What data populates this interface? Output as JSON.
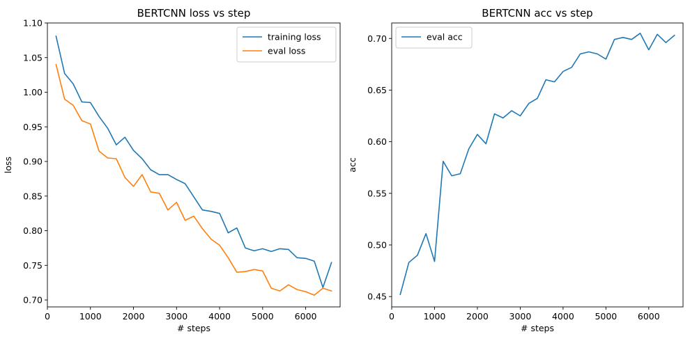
{
  "chart_data": [
    {
      "type": "line",
      "title": "BERTCNN loss vs step",
      "xlabel": "# steps",
      "ylabel": "loss",
      "xlim": [
        0,
        6800
      ],
      "ylim": [
        0.69,
        1.1
      ],
      "xticks": [
        "0",
        "1000",
        "2000",
        "3000",
        "4000",
        "5000",
        "6000"
      ],
      "xtick_values": [
        0,
        1000,
        2000,
        3000,
        4000,
        5000,
        6000
      ],
      "yticks": [
        "0.70",
        "0.75",
        "0.80",
        "0.85",
        "0.90",
        "0.95",
        "1.00",
        "1.05",
        "1.10"
      ],
      "ytick_values": [
        0.7,
        0.75,
        0.8,
        0.85,
        0.9,
        0.95,
        1.0,
        1.05,
        1.1
      ],
      "legend_position": "upper-right",
      "grid": false,
      "x": [
        200,
        400,
        600,
        800,
        1000,
        1200,
        1400,
        1600,
        1800,
        2000,
        2200,
        2400,
        2600,
        2800,
        3000,
        3200,
        3400,
        3600,
        3800,
        4000,
        4200,
        4400,
        4600,
        4800,
        5000,
        5200,
        5400,
        5600,
        5800,
        6000,
        6200,
        6400,
        6600
      ],
      "series": [
        {
          "name": "training loss",
          "color": "#1f77b4",
          "values": [
            1.081,
            1.027,
            1.012,
            0.986,
            0.985,
            0.965,
            0.948,
            0.924,
            0.935,
            0.916,
            0.904,
            0.888,
            0.881,
            0.881,
            0.874,
            0.868,
            0.849,
            0.83,
            0.828,
            0.825,
            0.797,
            0.804,
            0.775,
            0.771,
            0.774,
            0.77,
            0.774,
            0.773,
            0.761,
            0.76,
            0.756,
            0.718,
            0.754
          ]
        },
        {
          "name": "eval loss",
          "color": "#ff7f0e",
          "values": [
            1.04,
            0.99,
            0.981,
            0.959,
            0.954,
            0.915,
            0.905,
            0.904,
            0.877,
            0.864,
            0.881,
            0.856,
            0.854,
            0.83,
            0.841,
            0.815,
            0.821,
            0.803,
            0.788,
            0.779,
            0.761,
            0.74,
            0.741,
            0.744,
            0.742,
            0.717,
            0.713,
            0.722,
            0.715,
            0.712,
            0.707,
            0.717,
            0.713
          ]
        }
      ]
    },
    {
      "type": "line",
      "title": "BERTCNN acc vs step",
      "xlabel": "# steps",
      "ylabel": "acc",
      "xlim": [
        0,
        6800
      ],
      "ylim": [
        0.44,
        0.715
      ],
      "xticks": [
        "0",
        "1000",
        "2000",
        "3000",
        "4000",
        "5000",
        "6000"
      ],
      "xtick_values": [
        0,
        1000,
        2000,
        3000,
        4000,
        5000,
        6000
      ],
      "yticks": [
        "0.45",
        "0.50",
        "0.55",
        "0.60",
        "0.65",
        "0.70"
      ],
      "ytick_values": [
        0.45,
        0.5,
        0.55,
        0.6,
        0.65,
        0.7
      ],
      "legend_position": "upper-left",
      "grid": false,
      "x": [
        200,
        400,
        600,
        800,
        1000,
        1200,
        1400,
        1600,
        1800,
        2000,
        2200,
        2400,
        2600,
        2800,
        3000,
        3200,
        3400,
        3600,
        3800,
        4000,
        4200,
        4400,
        4600,
        4800,
        5000,
        5200,
        5400,
        5600,
        5800,
        6000,
        6200,
        6400,
        6600
      ],
      "series": [
        {
          "name": "eval acc",
          "color": "#1f77b4",
          "values": [
            0.452,
            0.483,
            0.49,
            0.511,
            0.484,
            0.581,
            0.567,
            0.569,
            0.593,
            0.607,
            0.598,
            0.627,
            0.623,
            0.63,
            0.625,
            0.637,
            0.642,
            0.66,
            0.658,
            0.668,
            0.672,
            0.685,
            0.687,
            0.685,
            0.68,
            0.699,
            0.701,
            0.699,
            0.705,
            0.689,
            0.704,
            0.696,
            0.703
          ]
        }
      ]
    }
  ]
}
